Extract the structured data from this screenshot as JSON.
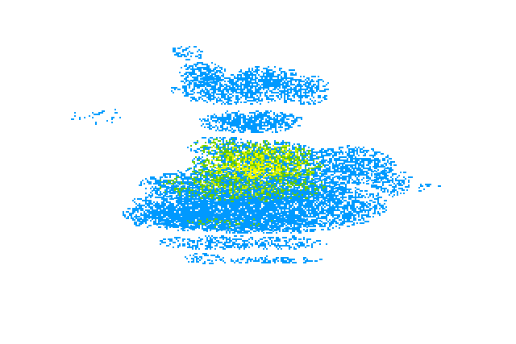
{
  "image": {
    "background": "#ffffff",
    "palette": {
      "level_1": "#0099ff",
      "level_2": "#66cc00",
      "level_3": "#ccee00",
      "level_4": "#ffff00"
    }
  }
}
